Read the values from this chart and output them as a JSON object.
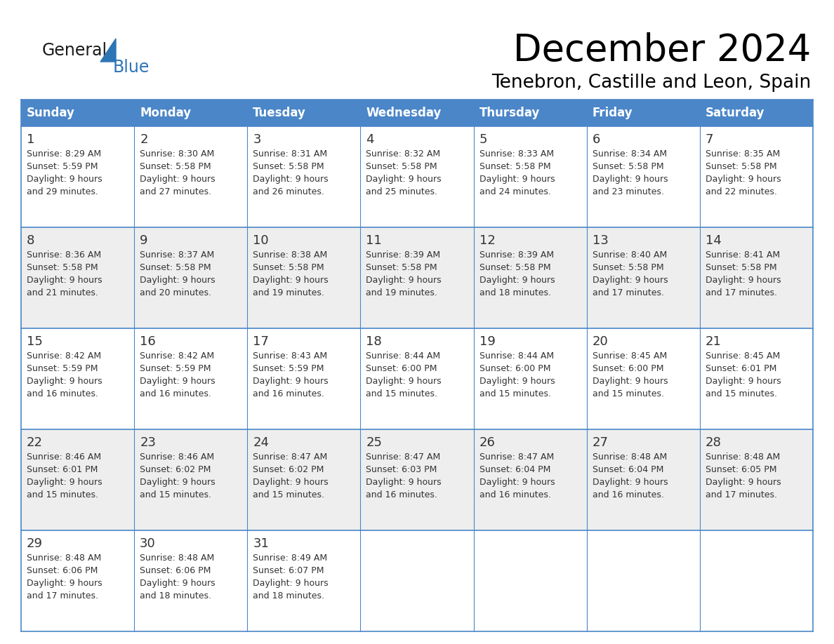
{
  "title": "December 2024",
  "subtitle": "Tenebron, Castille and Leon, Spain",
  "header_color": "#4A86C8",
  "header_text_color": "#FFFFFF",
  "day_names": [
    "Sunday",
    "Monday",
    "Tuesday",
    "Wednesday",
    "Thursday",
    "Friday",
    "Saturday"
  ],
  "bg_color_white": "#FFFFFF",
  "bg_color_gray": "#EEEEEE",
  "text_color": "#333333",
  "grid_color": "#4A86C8",
  "logo_general_color": "#1a1a1a",
  "logo_blue_color": "#2E75B6",
  "weeks": [
    [
      {
        "day": 1,
        "sunrise": "8:29 AM",
        "sunset": "5:59 PM",
        "dl2": "and 29 minutes."
      },
      {
        "day": 2,
        "sunrise": "8:30 AM",
        "sunset": "5:58 PM",
        "dl2": "and 27 minutes."
      },
      {
        "day": 3,
        "sunrise": "8:31 AM",
        "sunset": "5:58 PM",
        "dl2": "and 26 minutes."
      },
      {
        "day": 4,
        "sunrise": "8:32 AM",
        "sunset": "5:58 PM",
        "dl2": "and 25 minutes."
      },
      {
        "day": 5,
        "sunrise": "8:33 AM",
        "sunset": "5:58 PM",
        "dl2": "and 24 minutes."
      },
      {
        "day": 6,
        "sunrise": "8:34 AM",
        "sunset": "5:58 PM",
        "dl2": "and 23 minutes."
      },
      {
        "day": 7,
        "sunrise": "8:35 AM",
        "sunset": "5:58 PM",
        "dl2": "and 22 minutes."
      }
    ],
    [
      {
        "day": 8,
        "sunrise": "8:36 AM",
        "sunset": "5:58 PM",
        "dl2": "and 21 minutes."
      },
      {
        "day": 9,
        "sunrise": "8:37 AM",
        "sunset": "5:58 PM",
        "dl2": "and 20 minutes."
      },
      {
        "day": 10,
        "sunrise": "8:38 AM",
        "sunset": "5:58 PM",
        "dl2": "and 19 minutes."
      },
      {
        "day": 11,
        "sunrise": "8:39 AM",
        "sunset": "5:58 PM",
        "dl2": "and 19 minutes."
      },
      {
        "day": 12,
        "sunrise": "8:39 AM",
        "sunset": "5:58 PM",
        "dl2": "and 18 minutes."
      },
      {
        "day": 13,
        "sunrise": "8:40 AM",
        "sunset": "5:58 PM",
        "dl2": "and 17 minutes."
      },
      {
        "day": 14,
        "sunrise": "8:41 AM",
        "sunset": "5:58 PM",
        "dl2": "and 17 minutes."
      }
    ],
    [
      {
        "day": 15,
        "sunrise": "8:42 AM",
        "sunset": "5:59 PM",
        "dl2": "and 16 minutes."
      },
      {
        "day": 16,
        "sunrise": "8:42 AM",
        "sunset": "5:59 PM",
        "dl2": "and 16 minutes."
      },
      {
        "day": 17,
        "sunrise": "8:43 AM",
        "sunset": "5:59 PM",
        "dl2": "and 16 minutes."
      },
      {
        "day": 18,
        "sunrise": "8:44 AM",
        "sunset": "6:00 PM",
        "dl2": "and 15 minutes."
      },
      {
        "day": 19,
        "sunrise": "8:44 AM",
        "sunset": "6:00 PM",
        "dl2": "and 15 minutes."
      },
      {
        "day": 20,
        "sunrise": "8:45 AM",
        "sunset": "6:00 PM",
        "dl2": "and 15 minutes."
      },
      {
        "day": 21,
        "sunrise": "8:45 AM",
        "sunset": "6:01 PM",
        "dl2": "and 15 minutes."
      }
    ],
    [
      {
        "day": 22,
        "sunrise": "8:46 AM",
        "sunset": "6:01 PM",
        "dl2": "and 15 minutes."
      },
      {
        "day": 23,
        "sunrise": "8:46 AM",
        "sunset": "6:02 PM",
        "dl2": "and 15 minutes."
      },
      {
        "day": 24,
        "sunrise": "8:47 AM",
        "sunset": "6:02 PM",
        "dl2": "and 15 minutes."
      },
      {
        "day": 25,
        "sunrise": "8:47 AM",
        "sunset": "6:03 PM",
        "dl2": "and 16 minutes."
      },
      {
        "day": 26,
        "sunrise": "8:47 AM",
        "sunset": "6:04 PM",
        "dl2": "and 16 minutes."
      },
      {
        "day": 27,
        "sunrise": "8:48 AM",
        "sunset": "6:04 PM",
        "dl2": "and 16 minutes."
      },
      {
        "day": 28,
        "sunrise": "8:48 AM",
        "sunset": "6:05 PM",
        "dl2": "and 17 minutes."
      }
    ],
    [
      {
        "day": 29,
        "sunrise": "8:48 AM",
        "sunset": "6:06 PM",
        "dl2": "and 17 minutes."
      },
      {
        "day": 30,
        "sunrise": "8:48 AM",
        "sunset": "6:06 PM",
        "dl2": "and 18 minutes."
      },
      {
        "day": 31,
        "sunrise": "8:49 AM",
        "sunset": "6:07 PM",
        "dl2": "and 18 minutes."
      },
      null,
      null,
      null,
      null
    ]
  ]
}
